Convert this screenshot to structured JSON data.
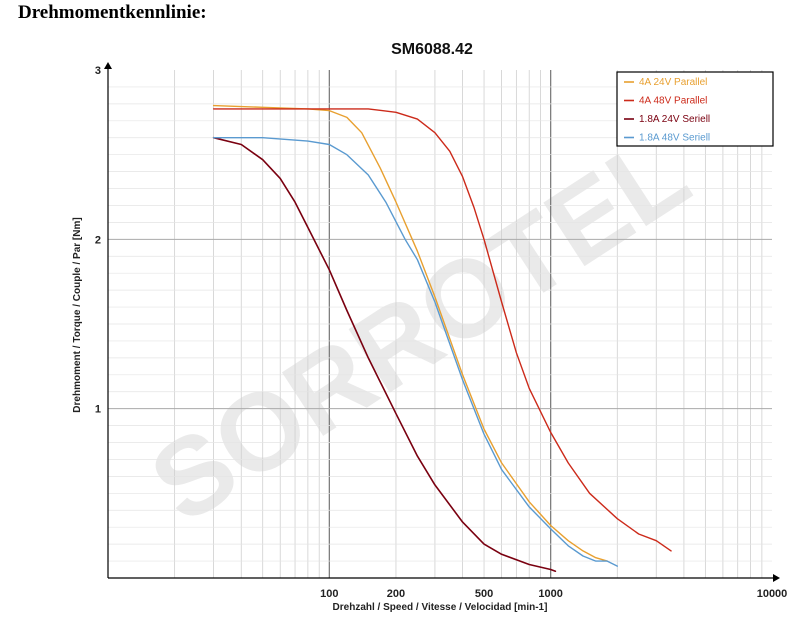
{
  "page": {
    "heading": "Drehmomentkennlinie:"
  },
  "watermark": "SORROTEL",
  "chart_data": {
    "type": "line",
    "title": "SM6088.42",
    "xlabel": "Drehzahl / Speed / Vitesse / Velocidad [min-1]",
    "ylabel": "Drehmoment / Torque / Couple / Par [Nm]",
    "x_scale": "log",
    "xlim": [
      10,
      10000
    ],
    "ylim": [
      0,
      3
    ],
    "x_ticks": [
      {
        "value": 100,
        "label": "100"
      },
      {
        "value": 200,
        "label": "200"
      },
      {
        "value": 500,
        "label": "500"
      },
      {
        "value": 1000,
        "label": "1000"
      },
      {
        "value": 10000,
        "label": "10000"
      }
    ],
    "y_ticks": [
      {
        "value": 1,
        "label": "1"
      },
      {
        "value": 2,
        "label": "2"
      },
      {
        "value": 3,
        "label": "3"
      }
    ],
    "grid": true,
    "legend_position": "top-right",
    "series": [
      {
        "name": "4A  24V  Parallel",
        "color": "#e8a030",
        "width": 1.4,
        "points": [
          [
            30,
            2.79
          ],
          [
            50,
            2.78
          ],
          [
            80,
            2.77
          ],
          [
            100,
            2.76
          ],
          [
            120,
            2.72
          ],
          [
            140,
            2.63
          ],
          [
            170,
            2.42
          ],
          [
            200,
            2.22
          ],
          [
            250,
            1.93
          ],
          [
            300,
            1.66
          ],
          [
            400,
            1.2
          ],
          [
            500,
            0.88
          ],
          [
            600,
            0.68
          ],
          [
            800,
            0.45
          ],
          [
            1000,
            0.31
          ],
          [
            1200,
            0.22
          ],
          [
            1400,
            0.16
          ],
          [
            1600,
            0.12
          ],
          [
            1800,
            0.1
          ]
        ]
      },
      {
        "name": "4A  48V  Parallel",
        "color": "#cc2a1a",
        "width": 1.4,
        "points": [
          [
            30,
            2.77
          ],
          [
            60,
            2.77
          ],
          [
            100,
            2.77
          ],
          [
            150,
            2.77
          ],
          [
            200,
            2.75
          ],
          [
            250,
            2.71
          ],
          [
            300,
            2.63
          ],
          [
            350,
            2.52
          ],
          [
            400,
            2.37
          ],
          [
            450,
            2.19
          ],
          [
            500,
            2.0
          ],
          [
            600,
            1.63
          ],
          [
            700,
            1.33
          ],
          [
            800,
            1.12
          ],
          [
            1000,
            0.86
          ],
          [
            1200,
            0.68
          ],
          [
            1500,
            0.5
          ],
          [
            2000,
            0.35
          ],
          [
            2500,
            0.26
          ],
          [
            3000,
            0.22
          ],
          [
            3500,
            0.16
          ]
        ]
      },
      {
        "name": "1.8A  24V  Seriell",
        "color": "#7a0010",
        "width": 1.6,
        "points": [
          [
            30,
            2.6
          ],
          [
            40,
            2.56
          ],
          [
            50,
            2.47
          ],
          [
            60,
            2.36
          ],
          [
            70,
            2.22
          ],
          [
            80,
            2.07
          ],
          [
            100,
            1.82
          ],
          [
            120,
            1.58
          ],
          [
            150,
            1.3
          ],
          [
            200,
            0.97
          ],
          [
            250,
            0.72
          ],
          [
            300,
            0.55
          ],
          [
            400,
            0.33
          ],
          [
            500,
            0.2
          ],
          [
            600,
            0.14
          ],
          [
            800,
            0.08
          ],
          [
            1000,
            0.05
          ],
          [
            1050,
            0.04
          ]
        ]
      },
      {
        "name": "1.8A  48V  Seriell",
        "color": "#5a9ad0",
        "width": 1.4,
        "points": [
          [
            30,
            2.6
          ],
          [
            50,
            2.6
          ],
          [
            80,
            2.58
          ],
          [
            100,
            2.56
          ],
          [
            120,
            2.5
          ],
          [
            150,
            2.38
          ],
          [
            180,
            2.22
          ],
          [
            220,
            2.0
          ],
          [
            250,
            1.88
          ],
          [
            300,
            1.63
          ],
          [
            400,
            1.17
          ],
          [
            500,
            0.85
          ],
          [
            600,
            0.64
          ],
          [
            800,
            0.42
          ],
          [
            1000,
            0.29
          ],
          [
            1200,
            0.19
          ],
          [
            1400,
            0.13
          ],
          [
            1600,
            0.1
          ],
          [
            1800,
            0.1
          ],
          [
            2000,
            0.07
          ]
        ]
      }
    ]
  }
}
